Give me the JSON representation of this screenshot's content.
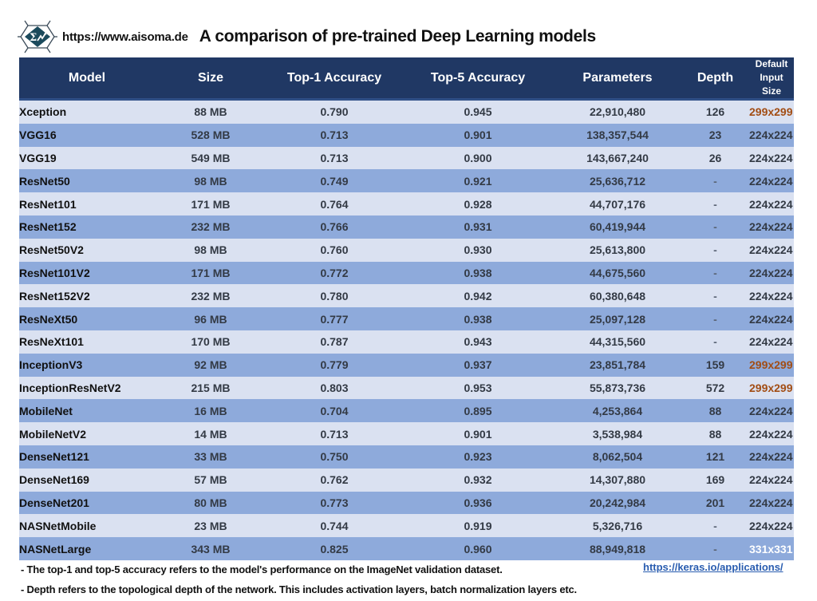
{
  "header": {
    "site_url": "https://www.aisoma.de",
    "title": "A comparison of pre-trained Deep Learning models",
    "logo_icon": "sigma-hexagon-logo-icon"
  },
  "colors": {
    "header_bg": "#203864",
    "row_light": "#dae1f1",
    "row_dark": "#8eaadb",
    "highlight_orange": "#a24d14",
    "link": "#2a5db0"
  },
  "table": {
    "columns": [
      "Model",
      "Size",
      "Top-1 Accuracy",
      "Top-5 Accuracy",
      "Parameters",
      "Depth",
      "Default Input Size"
    ],
    "column_last_line1": "Default",
    "column_last_line2": "Input Size",
    "rows": [
      {
        "model": "Xception",
        "size": "88 MB",
        "top1": "0.790",
        "top5": "0.945",
        "params": "22,910,480",
        "depth": "126",
        "input": "299x299"
      },
      {
        "model": "VGG16",
        "size": "528 MB",
        "top1": "0.713",
        "top5": "0.901",
        "params": "138,357,544",
        "depth": "23",
        "input": "224x224"
      },
      {
        "model": "VGG19",
        "size": "549 MB",
        "top1": "0.713",
        "top5": "0.900",
        "params": "143,667,240",
        "depth": "26",
        "input": "224x224"
      },
      {
        "model": "ResNet50",
        "size": "98 MB",
        "top1": "0.749",
        "top5": "0.921",
        "params": "25,636,712",
        "depth": "-",
        "input": "224x224"
      },
      {
        "model": "ResNet101",
        "size": "171 MB",
        "top1": "0.764",
        "top5": "0.928",
        "params": "44,707,176",
        "depth": "-",
        "input": "224x224"
      },
      {
        "model": "ResNet152",
        "size": "232 MB",
        "top1": "0.766",
        "top5": "0.931",
        "params": "60,419,944",
        "depth": "-",
        "input": "224x224"
      },
      {
        "model": "ResNet50V2",
        "size": "98 MB",
        "top1": "0.760",
        "top5": "0.930",
        "params": "25,613,800",
        "depth": "-",
        "input": "224x224"
      },
      {
        "model": "ResNet101V2",
        "size": "171 MB",
        "top1": "0.772",
        "top5": "0.938",
        "params": "44,675,560",
        "depth": "-",
        "input": "224x224"
      },
      {
        "model": "ResNet152V2",
        "size": "232 MB",
        "top1": "0.780",
        "top5": "0.942",
        "params": "60,380,648",
        "depth": "-",
        "input": "224x224"
      },
      {
        "model": "ResNeXt50",
        "size": "96 MB",
        "top1": "0.777",
        "top5": "0.938",
        "params": "25,097,128",
        "depth": "-",
        "input": "224x224"
      },
      {
        "model": "ResNeXt101",
        "size": "170 MB",
        "top1": "0.787",
        "top5": "0.943",
        "params": "44,315,560",
        "depth": "-",
        "input": "224x224"
      },
      {
        "model": "InceptionV3",
        "size": "92 MB",
        "top1": "0.779",
        "top5": "0.937",
        "params": "23,851,784",
        "depth": "159",
        "input": "299x299"
      },
      {
        "model": "InceptionResNetV2",
        "size": "215 MB",
        "top1": "0.803",
        "top5": "0.953",
        "params": "55,873,736",
        "depth": "572",
        "input": "299x299"
      },
      {
        "model": "MobileNet",
        "size": "16 MB",
        "top1": "0.704",
        "top5": "0.895",
        "params": "4,253,864",
        "depth": "88",
        "input": "224x224"
      },
      {
        "model": "MobileNetV2",
        "size": "14 MB",
        "top1": "0.713",
        "top5": "0.901",
        "params": "3,538,984",
        "depth": "88",
        "input": "224x224"
      },
      {
        "model": "DenseNet121",
        "size": "33 MB",
        "top1": "0.750",
        "top5": "0.923",
        "params": "8,062,504",
        "depth": "121",
        "input": "224x224"
      },
      {
        "model": "DenseNet169",
        "size": "57 MB",
        "top1": "0.762",
        "top5": "0.932",
        "params": "14,307,880",
        "depth": "169",
        "input": "224x224"
      },
      {
        "model": "DenseNet201",
        "size": "80 MB",
        "top1": "0.773",
        "top5": "0.936",
        "params": "20,242,984",
        "depth": "201",
        "input": "224x224"
      },
      {
        "model": "NASNetMobile",
        "size": "23 MB",
        "top1": "0.744",
        "top5": "0.919",
        "params": "5,326,716",
        "depth": "-",
        "input": "224x224"
      },
      {
        "model": "NASNetLarge",
        "size": "343 MB",
        "top1": "0.825",
        "top5": "0.960",
        "params": "88,949,818",
        "depth": "-",
        "input": "331x331"
      }
    ]
  },
  "footer": {
    "note1": "- The top-1 and top-5 accuracy refers to the model's performance on the ImageNet validation dataset.",
    "note2": "- Depth refers to the topological depth of the network. This includes activation layers, batch normalization layers etc.",
    "link": "https://keras.io/applications/"
  }
}
